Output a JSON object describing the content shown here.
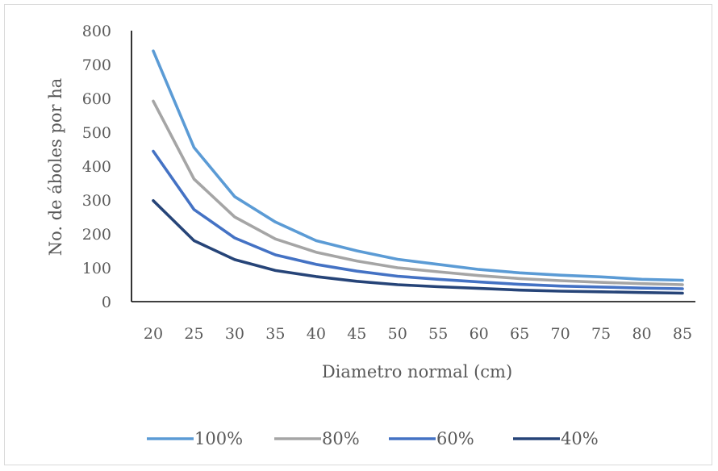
{
  "chart_data": {
    "type": "line",
    "title": "",
    "xlabel": "Diametro normal (cm)",
    "ylabel": "No. de áboles por ha",
    "categories": [
      "20",
      "25",
      "30",
      "35",
      "40",
      "45",
      "50",
      "55",
      "60",
      "65",
      "70",
      "75",
      "80",
      "85"
    ],
    "ylim": [
      0,
      800
    ],
    "yticks": [
      0,
      100,
      200,
      300,
      400,
      500,
      600,
      700,
      800
    ],
    "grid": false,
    "legend_position": "bottom",
    "series": [
      {
        "name": "100%",
        "color": "#5b9bd5",
        "values": [
          740,
          455,
          310,
          235,
          180,
          150,
          125,
          110,
          95,
          85,
          78,
          73,
          66,
          63
        ]
      },
      {
        "name": "80%",
        "color": "#a5a5a5",
        "values": [
          592,
          362,
          250,
          185,
          146,
          120,
          100,
          88,
          77,
          68,
          62,
          57,
          53,
          50
        ]
      },
      {
        "name": "60%",
        "color": "#4472c4",
        "values": [
          444,
          272,
          188,
          138,
          110,
          90,
          75,
          66,
          58,
          51,
          46,
          43,
          40,
          38
        ]
      },
      {
        "name": "40%",
        "color": "#264478",
        "values": [
          298,
          180,
          124,
          92,
          74,
          60,
          50,
          44,
          39,
          34,
          31,
          29,
          27,
          25
        ]
      }
    ]
  }
}
